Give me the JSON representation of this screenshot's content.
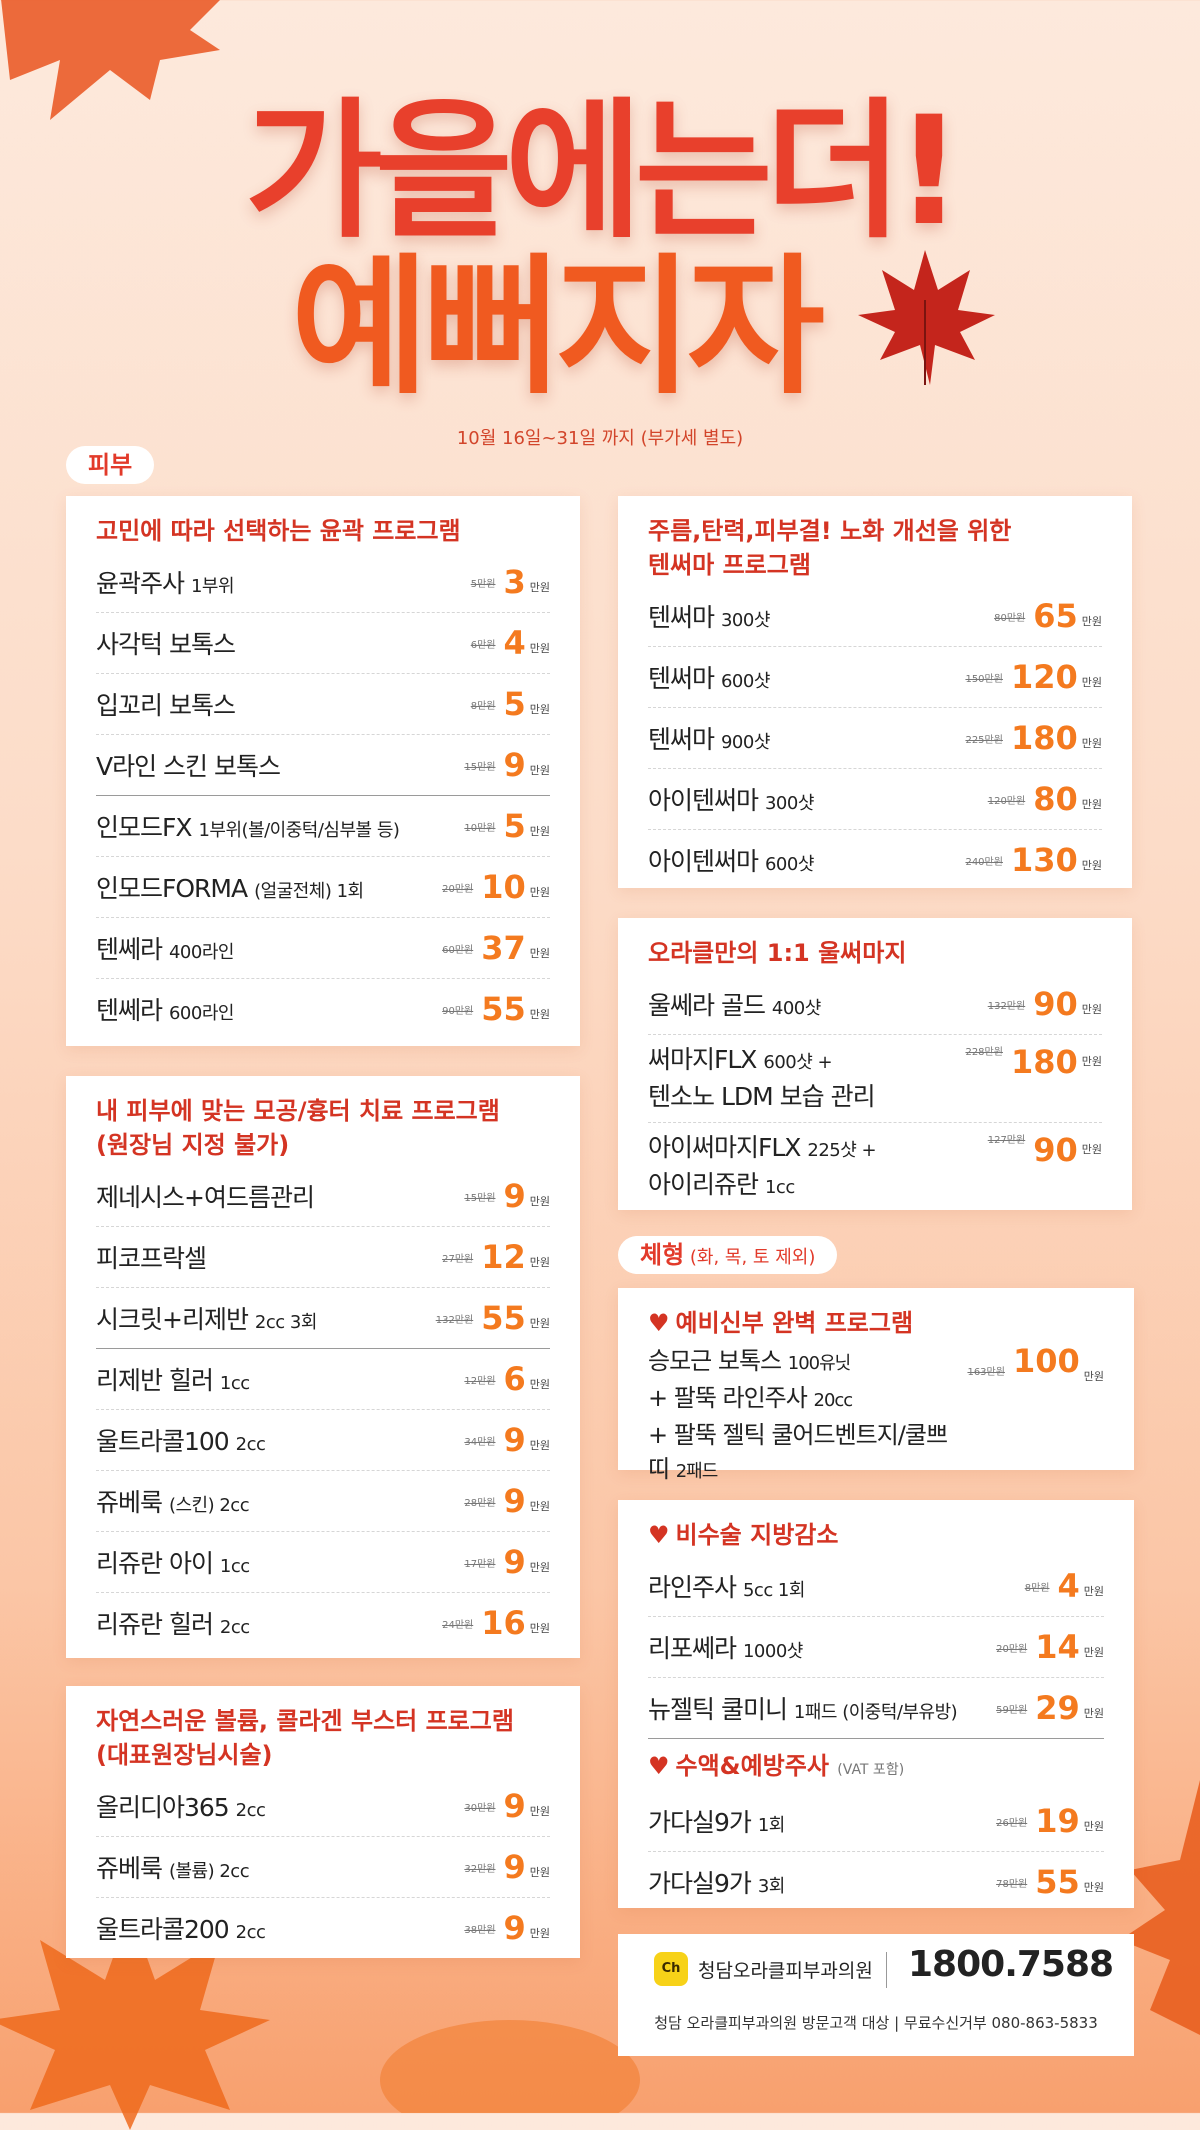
{
  "header": {
    "title_line1": "가을에는더!",
    "title_line2": "예뻐지자",
    "date_note": "10월 16일~31일 까지 (부가세 별도)"
  },
  "sections": {
    "skin": "피부",
    "body": "체형",
    "body_note": " (화, 목, 토 제외)"
  },
  "colors": {
    "accent_red": "#e8402c",
    "price_orange": "#f47a1f"
  },
  "unit": "만원",
  "card_contour": {
    "title": "고민에 따라 선택하는 윤곽 프로그램",
    "rows": [
      {
        "name": "윤곽주사",
        "note": "1부위",
        "orig": "5만원",
        "price": "3"
      },
      {
        "name": "사각턱 보톡스",
        "note": "",
        "orig": "6만원",
        "price": "4"
      },
      {
        "name": "입꼬리 보톡스",
        "note": "",
        "orig": "8만원",
        "price": "5"
      },
      {
        "name": "V라인 스킨 보톡스",
        "note": "",
        "orig": "15만원",
        "price": "9"
      },
      {
        "name": "인모드FX",
        "note": "1부위(볼/이중턱/심부볼 등)",
        "orig": "10만원",
        "price": "5"
      },
      {
        "name": "인모드FORMA",
        "note": "(얼굴전체) 1회",
        "orig": "20만원",
        "price": "10"
      },
      {
        "name": "텐쎄라",
        "note": "400라인",
        "orig": "60만원",
        "price": "37"
      },
      {
        "name": "텐쎄라",
        "note": "600라인",
        "orig": "90만원",
        "price": "55"
      }
    ]
  },
  "card_pore": {
    "title_line1": "내 피부에 맞는 모공/흉터 치료 프로그램",
    "title_line2": "(원장님 지정 불가)",
    "rows": [
      {
        "name": "제네시스+여드름관리",
        "note": "",
        "orig": "15만원",
        "price": "9"
      },
      {
        "name": "피코프락셀",
        "note": "",
        "orig": "27만원",
        "price": "12"
      },
      {
        "name": "시크릿+리제반",
        "note": "2cc 3회",
        "orig": "132만원",
        "price": "55"
      },
      {
        "name": "리제반 힐러",
        "note": "1cc",
        "orig": "12만원",
        "price": "6"
      },
      {
        "name": "울트라콜100",
        "note": "2cc",
        "orig": "34만원",
        "price": "9"
      },
      {
        "name": "쥬베룩",
        "note": "(스킨) 2cc",
        "orig": "28만원",
        "price": "9"
      },
      {
        "name": "리쥬란 아이",
        "note": "1cc",
        "orig": "17만원",
        "price": "9"
      },
      {
        "name": "리쥬란 힐러",
        "note": "2cc",
        "orig": "24만원",
        "price": "16"
      }
    ]
  },
  "card_volume": {
    "title_line1": "자연스러운 볼륨, 콜라겐 부스터 프로그램",
    "title_line2": "(대표원장님시술)",
    "rows": [
      {
        "name": "올리디아365",
        "note": "2cc",
        "orig": "30만원",
        "price": "9"
      },
      {
        "name": "쥬베룩",
        "note": "(볼륨) 2cc",
        "orig": "32만원",
        "price": "9"
      },
      {
        "name": "울트라콜200",
        "note": "2cc",
        "orig": "38만원",
        "price": "9"
      }
    ]
  },
  "card_thermage": {
    "title_line1": "주름,탄력,피부결! 노화 개선을 위한",
    "title_line2": "텐써마 프로그램",
    "rows": [
      {
        "name": "텐써마",
        "note": "300샷",
        "orig": "80만원",
        "price": "65"
      },
      {
        "name": "텐써마",
        "note": "600샷",
        "orig": "150만원",
        "price": "120"
      },
      {
        "name": "텐써마",
        "note": "900샷",
        "orig": "225만원",
        "price": "180"
      },
      {
        "name": "아이텐써마",
        "note": "300샷",
        "orig": "120만원",
        "price": "80"
      },
      {
        "name": "아이텐써마",
        "note": "600샷",
        "orig": "240만원",
        "price": "130"
      }
    ]
  },
  "card_ulthera": {
    "title": "오라클만의 1:1 울써마지",
    "rows": [
      {
        "name": "울쎄라 골드",
        "note": "400샷",
        "orig": "132만원",
        "price": "90"
      },
      {
        "name": "써마지FLX",
        "note": "600샷 +",
        "name2": "텐소노 LDM 보습 관리",
        "orig": "228만원",
        "price": "180"
      },
      {
        "name": "아이써마지FLX",
        "note": "225샷 +",
        "name2": "아이리쥬란",
        "note2": "1cc",
        "orig": "127만원",
        "price": "90"
      }
    ]
  },
  "card_bride": {
    "title": "예비신부 완벽 프로그램",
    "line1": "승모근 보톡스",
    "line1_note": "100유닛",
    "line2": "+ 팔뚝 라인주사",
    "line2_note": "20cc",
    "line3": "+ 팔뚝 젤틱 쿨어드벤트지/쿨쁘띠",
    "line3_note": "2패드",
    "orig": "163만원",
    "price": "100"
  },
  "card_fat": {
    "title": "비수술 지방감소",
    "rows": [
      {
        "name": "라인주사",
        "note": "5cc 1회",
        "orig": "8만원",
        "price": "4"
      },
      {
        "name": "리포쎄라",
        "note": "1000샷",
        "orig": "20만원",
        "price": "14"
      },
      {
        "name": "뉴젤틱 쿨미니",
        "note": "1패드 (이중턱/부유방)",
        "orig": "59만원",
        "price": "29"
      }
    ],
    "title2": "수액&예방주사",
    "title2_note": "(VAT 포함)",
    "rows2": [
      {
        "name": "가다실9가",
        "note": "1회",
        "orig": "26만원",
        "price": "19"
      },
      {
        "name": "가다실9가",
        "note": "3회",
        "orig": "78만원",
        "price": "55"
      }
    ]
  },
  "footer": {
    "logo_text": "Ch",
    "clinic": "청담오라클피부과의원",
    "phone": "1800.7588",
    "note": "청담 오라클피부과의원 방문고객 대상 | 무료수신거부 080-863-5833"
  }
}
